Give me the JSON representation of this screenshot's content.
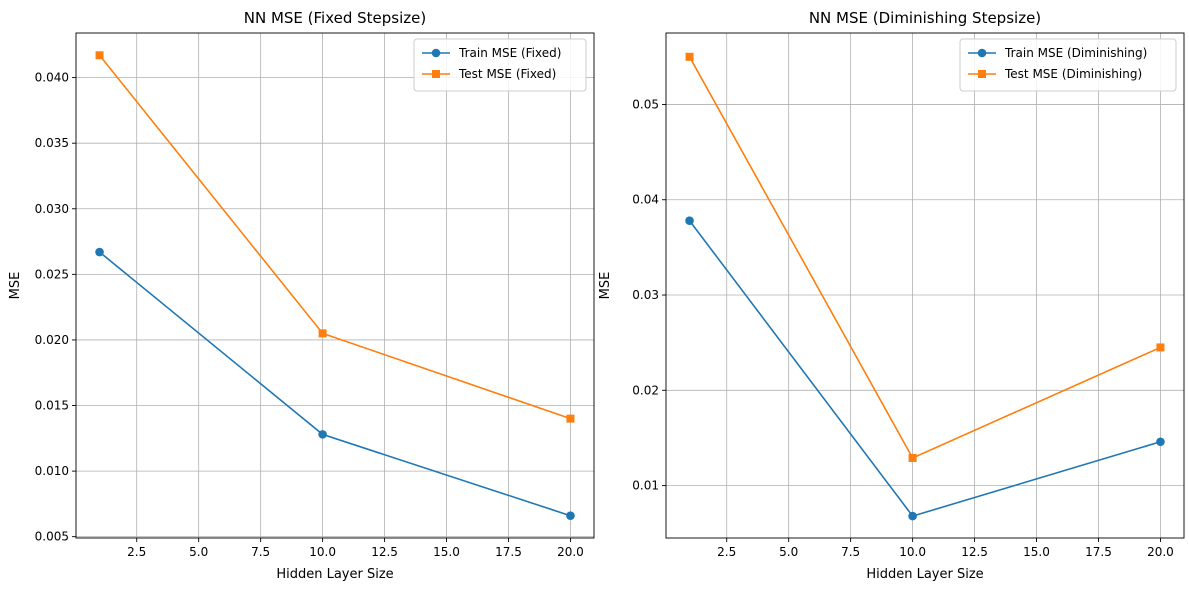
{
  "chart_data": [
    {
      "type": "line",
      "title": "NN MSE (Fixed Stepsize)",
      "xlabel": "Hidden Layer Size",
      "ylabel": "MSE",
      "x": [
        1,
        10,
        20
      ],
      "xlim": [
        0.05,
        20.95
      ],
      "ylim": [
        0.0049,
        0.0434
      ],
      "xticks": [
        2.5,
        5.0,
        7.5,
        10.0,
        12.5,
        15.0,
        17.5,
        20.0
      ],
      "xtick_labels": [
        "2.5",
        "5.0",
        "7.5",
        "10.0",
        "12.5",
        "15.0",
        "17.5",
        "20.0"
      ],
      "yticks": [
        0.005,
        0.01,
        0.015,
        0.02,
        0.025,
        0.03,
        0.035,
        0.04
      ],
      "ytick_labels": [
        "0.005",
        "0.010",
        "0.015",
        "0.020",
        "0.025",
        "0.030",
        "0.035",
        "0.040"
      ],
      "grid": true,
      "legend_position": "top-right",
      "series": [
        {
          "name": "Train MSE (Fixed)",
          "values": [
            0.0267,
            0.0128,
            0.0066
          ],
          "color": "#1f77b4",
          "marker": "circle"
        },
        {
          "name": "Test MSE (Fixed)",
          "values": [
            0.0417,
            0.0205,
            0.014
          ],
          "color": "#ff7f0e",
          "marker": "square"
        }
      ]
    },
    {
      "type": "line",
      "title": "NN MSE (Diminishing Stepsize)",
      "xlabel": "Hidden Layer Size",
      "ylabel": "MSE",
      "x": [
        1,
        10,
        20
      ],
      "xlim": [
        0.05,
        20.95
      ],
      "ylim": [
        0.0045,
        0.0575
      ],
      "xticks": [
        2.5,
        5.0,
        7.5,
        10.0,
        12.5,
        15.0,
        17.5,
        20.0
      ],
      "xtick_labels": [
        "2.5",
        "5.0",
        "7.5",
        "10.0",
        "12.5",
        "15.0",
        "17.5",
        "20.0"
      ],
      "yticks": [
        0.01,
        0.02,
        0.03,
        0.04,
        0.05
      ],
      "ytick_labels": [
        "0.01",
        "0.02",
        "0.03",
        "0.04",
        "0.05"
      ],
      "grid": true,
      "legend_position": "top-right",
      "series": [
        {
          "name": "Train MSE (Diminishing)",
          "values": [
            0.0378,
            0.0068,
            0.0146
          ],
          "color": "#1f77b4",
          "marker": "circle"
        },
        {
          "name": "Test MSE (Diminishing)",
          "values": [
            0.055,
            0.0129,
            0.0245
          ],
          "color": "#ff7f0e",
          "marker": "square"
        }
      ]
    }
  ]
}
